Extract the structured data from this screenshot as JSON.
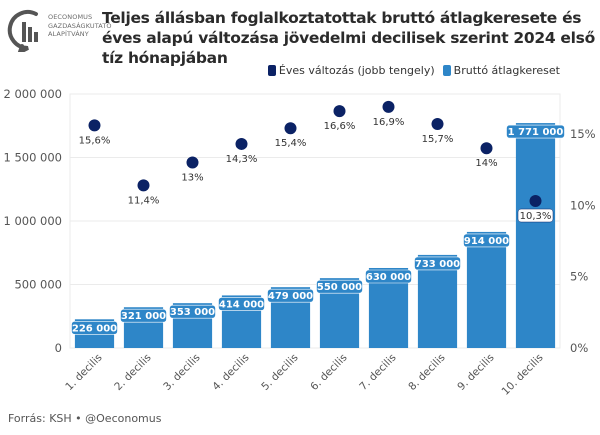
{
  "logo": {
    "icon": "oeconomus-logo-icon",
    "lines": [
      "OECONOMUS",
      "GAZDASÁGKUTATÓ",
      "ALAPÍTVÁNY"
    ]
  },
  "footer": "Forrás: KSH • @Oeconomus",
  "colors": {
    "bar": "#2e86c8",
    "point": "#0b2265",
    "grid": "#ebebeb"
  },
  "chart_data": {
    "type": "bar",
    "title": "Teljes állásban foglalkoztatottak bruttó átlagkeresete és éves alapú változása jövedelmi decilisek szerint 2024 első tíz hónapjában",
    "categories": [
      "1. decilis",
      "2. decilis",
      "3. decilis",
      "4. decilis",
      "5. decilis",
      "6. decilis",
      "7. decilis",
      "8. decilis",
      "9. decilis",
      "10. decilis"
    ],
    "series": [
      {
        "name": "Bruttó átlagkereset",
        "type": "bar",
        "axis": "left",
        "values": [
          226000,
          321000,
          353000,
          414000,
          479000,
          550000,
          630000,
          733000,
          914000,
          1771000
        ],
        "labels": [
          "226 000",
          "321 000",
          "353 000",
          "414 000",
          "479 000",
          "550 000",
          "630 000",
          "733 000",
          "914 000",
          "1 771 000"
        ]
      },
      {
        "name": "Éves változás (jobb tengely)",
        "type": "scatter",
        "axis": "right",
        "values": [
          15.6,
          11.4,
          13.0,
          14.3,
          15.4,
          16.6,
          16.9,
          15.7,
          14.0,
          10.3
        ],
        "labels": [
          "15,6%",
          "11,4%",
          "13%",
          "14,3%",
          "15,4%",
          "16,6%",
          "16,9%",
          "15,7%",
          "14%",
          "10,3%"
        ]
      }
    ],
    "legend": {
      "position": "top-right",
      "entries": [
        "Éves változás (jobb tengely)",
        "Bruttó átlagkereset"
      ]
    },
    "left_axis": {
      "ylim": [
        0,
        2000000
      ],
      "ticks": [
        0,
        500000,
        1000000,
        1500000,
        2000000
      ],
      "tick_labels": [
        "0",
        "500 000",
        "1 000 000",
        "1 500 000",
        "2 000 000"
      ]
    },
    "right_axis": {
      "ylim": [
        0,
        17.8
      ],
      "ticks": [
        0,
        5,
        10,
        15
      ],
      "tick_labels": [
        "0%",
        "5%",
        "10%",
        "15%"
      ]
    },
    "xlabel": "",
    "ylabel": "",
    "grid": true
  }
}
